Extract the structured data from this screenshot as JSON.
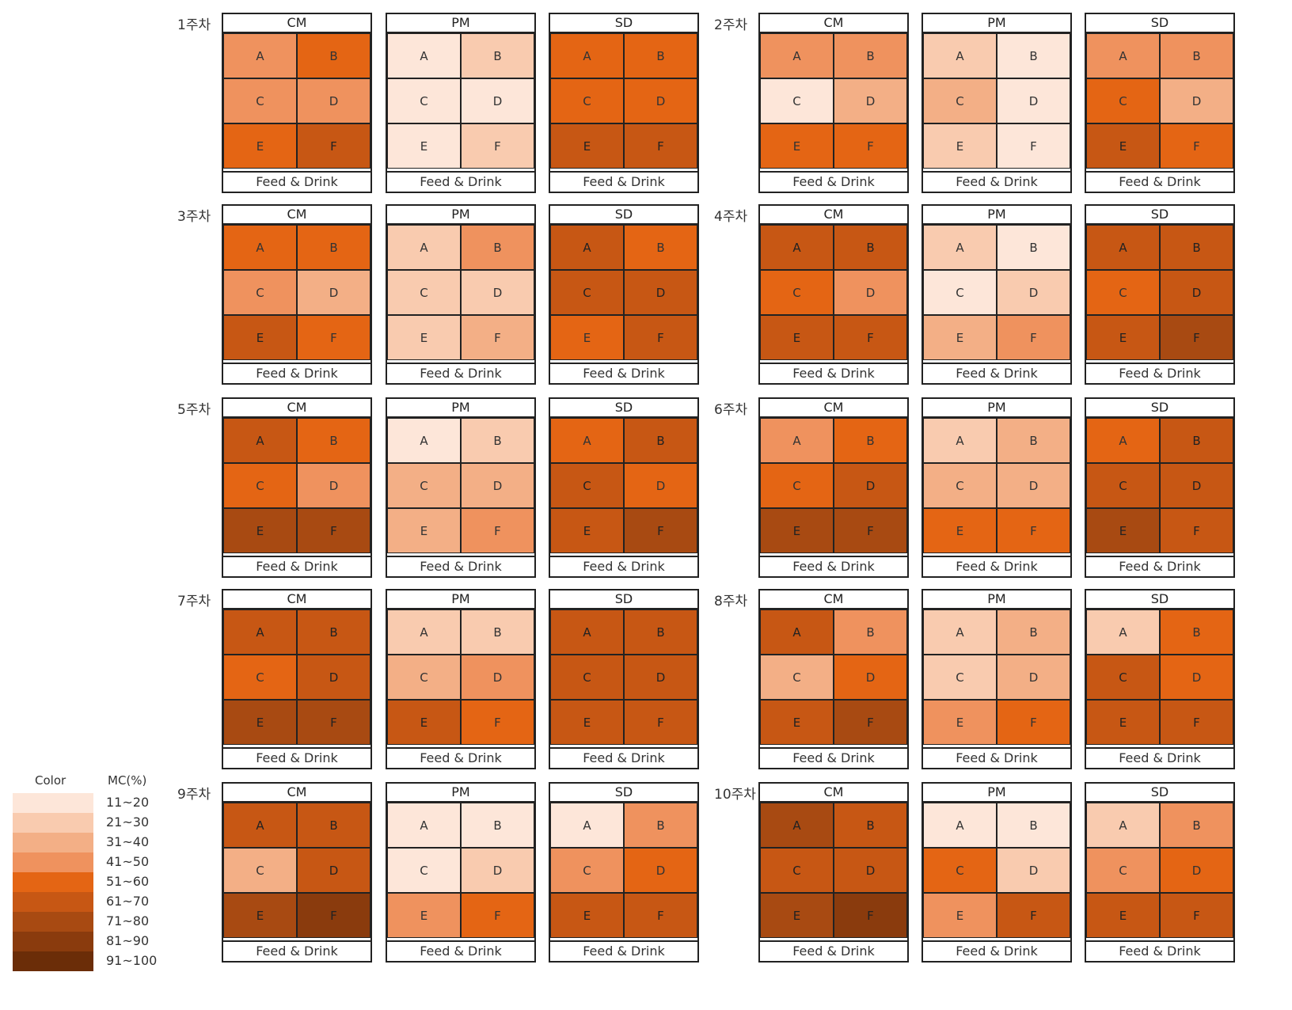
{
  "chart_data": {
    "type": "heatmap",
    "value_unit": "MC (%)",
    "colors": {
      "11-20": "#fde6d9",
      "21-30": "#f9cbaf",
      "31-40": "#f3af86",
      "41-50": "#ef925e",
      "51-60": "#e46514",
      "61-70": "#c75714",
      "71-80": "#a84a12",
      "81-90": "#8a3b0d",
      "91-100": "#6b2d08"
    },
    "legend": {
      "color_header": "Color",
      "mc_header": "MC(%)",
      "items": [
        {
          "label": "11~20",
          "bin": "11-20"
        },
        {
          "label": "21~30",
          "bin": "21-30"
        },
        {
          "label": "31~40",
          "bin": "31-40"
        },
        {
          "label": "41~50",
          "bin": "41-50"
        },
        {
          "label": "51~60",
          "bin": "51-60"
        },
        {
          "label": "61~70",
          "bin": "61-70"
        },
        {
          "label": "71~80",
          "bin": "71-80"
        },
        {
          "label": "81~90",
          "bin": "81-90"
        },
        {
          "label": "91~100",
          "bin": "91-100"
        }
      ]
    },
    "cell_labels": [
      "A",
      "B",
      "C",
      "D",
      "E",
      "F"
    ],
    "footer_label": "Feed & Drink",
    "weeks": [
      {
        "label": "1주차",
        "panels": [
          {
            "title": "CM",
            "cells": [
              "41-50",
              "51-60",
              "41-50",
              "41-50",
              "51-60",
              "61-70"
            ]
          },
          {
            "title": "PM",
            "cells": [
              "11-20",
              "21-30",
              "11-20",
              "11-20",
              "11-20",
              "21-30"
            ]
          },
          {
            "title": "SD",
            "cells": [
              "51-60",
              "51-60",
              "51-60",
              "51-60",
              "61-70",
              "61-70"
            ]
          }
        ]
      },
      {
        "label": "2주차",
        "panels": [
          {
            "title": "CM",
            "cells": [
              "41-50",
              "41-50",
              "11-20",
              "31-40",
              "51-60",
              "51-60"
            ]
          },
          {
            "title": "PM",
            "cells": [
              "21-30",
              "11-20",
              "31-40",
              "11-20",
              "21-30",
              "11-20"
            ]
          },
          {
            "title": "SD",
            "cells": [
              "41-50",
              "41-50",
              "51-60",
              "31-40",
              "61-70",
              "51-60"
            ]
          }
        ]
      },
      {
        "label": "3주차",
        "panels": [
          {
            "title": "CM",
            "cells": [
              "51-60",
              "51-60",
              "41-50",
              "31-40",
              "61-70",
              "51-60"
            ]
          },
          {
            "title": "PM",
            "cells": [
              "21-30",
              "41-50",
              "21-30",
              "21-30",
              "21-30",
              "31-40"
            ]
          },
          {
            "title": "SD",
            "cells": [
              "61-70",
              "51-60",
              "61-70",
              "61-70",
              "51-60",
              "61-70"
            ]
          }
        ]
      },
      {
        "label": "4주차",
        "panels": [
          {
            "title": "CM",
            "cells": [
              "61-70",
              "61-70",
              "51-60",
              "41-50",
              "61-70",
              "61-70"
            ]
          },
          {
            "title": "PM",
            "cells": [
              "21-30",
              "11-20",
              "11-20",
              "21-30",
              "31-40",
              "41-50"
            ]
          },
          {
            "title": "SD",
            "cells": [
              "61-70",
              "61-70",
              "51-60",
              "61-70",
              "61-70",
              "71-80"
            ]
          }
        ]
      },
      {
        "label": "5주차",
        "panels": [
          {
            "title": "CM",
            "cells": [
              "61-70",
              "51-60",
              "51-60",
              "41-50",
              "71-80",
              "71-80"
            ]
          },
          {
            "title": "PM",
            "cells": [
              "11-20",
              "21-30",
              "31-40",
              "31-40",
              "31-40",
              "41-50"
            ]
          },
          {
            "title": "SD",
            "cells": [
              "51-60",
              "61-70",
              "61-70",
              "51-60",
              "61-70",
              "71-80"
            ]
          }
        ]
      },
      {
        "label": "6주차",
        "panels": [
          {
            "title": "CM",
            "cells": [
              "41-50",
              "51-60",
              "51-60",
              "61-70",
              "71-80",
              "71-80"
            ]
          },
          {
            "title": "PM",
            "cells": [
              "21-30",
              "31-40",
              "31-40",
              "31-40",
              "51-60",
              "51-60"
            ]
          },
          {
            "title": "SD",
            "cells": [
              "51-60",
              "61-70",
              "61-70",
              "61-70",
              "71-80",
              "61-70"
            ]
          }
        ]
      },
      {
        "label": "7주차",
        "panels": [
          {
            "title": "CM",
            "cells": [
              "61-70",
              "61-70",
              "51-60",
              "61-70",
              "71-80",
              "71-80"
            ]
          },
          {
            "title": "PM",
            "cells": [
              "21-30",
              "21-30",
              "31-40",
              "41-50",
              "61-70",
              "51-60"
            ]
          },
          {
            "title": "SD",
            "cells": [
              "61-70",
              "61-70",
              "61-70",
              "61-70",
              "61-70",
              "61-70"
            ]
          }
        ]
      },
      {
        "label": "8주차",
        "panels": [
          {
            "title": "CM",
            "cells": [
              "61-70",
              "41-50",
              "31-40",
              "51-60",
              "61-70",
              "71-80"
            ]
          },
          {
            "title": "PM",
            "cells": [
              "21-30",
              "31-40",
              "21-30",
              "31-40",
              "41-50",
              "51-60"
            ]
          },
          {
            "title": "SD",
            "cells": [
              "21-30",
              "51-60",
              "61-70",
              "51-60",
              "61-70",
              "61-70"
            ]
          }
        ]
      },
      {
        "label": "9주차",
        "panels": [
          {
            "title": "CM",
            "cells": [
              "61-70",
              "61-70",
              "31-40",
              "61-70",
              "71-80",
              "81-90"
            ]
          },
          {
            "title": "PM",
            "cells": [
              "11-20",
              "11-20",
              "11-20",
              "21-30",
              "41-50",
              "51-60"
            ]
          },
          {
            "title": "SD",
            "cells": [
              "11-20",
              "41-50",
              "41-50",
              "51-60",
              "61-70",
              "61-70"
            ]
          }
        ]
      },
      {
        "label": "10주차",
        "panels": [
          {
            "title": "CM",
            "cells": [
              "71-80",
              "61-70",
              "61-70",
              "61-70",
              "71-80",
              "81-90"
            ]
          },
          {
            "title": "PM",
            "cells": [
              "11-20",
              "11-20",
              "51-60",
              "21-30",
              "41-50",
              "61-70"
            ]
          },
          {
            "title": "SD",
            "cells": [
              "21-30",
              "41-50",
              "41-50",
              "51-60",
              "61-70",
              "61-70"
            ]
          }
        ]
      }
    ]
  }
}
